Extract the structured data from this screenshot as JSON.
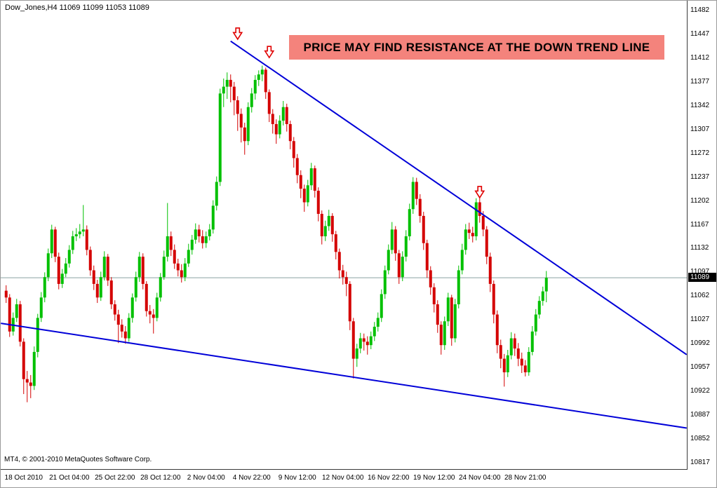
{
  "info_bar": {
    "text": "Dow_Jones,H4  11069 11099 11053 11089"
  },
  "annotation_banner": {
    "text": "PRICE MAY FIND RESISTANCE AT THE DOWN TREND LINE",
    "bg": "#f4837c",
    "fg": "#000000"
  },
  "copyright": {
    "text": "MT4, © 2001-2010 MetaQuotes Software Corp."
  },
  "chart_data": {
    "type": "candlestick",
    "symbol": "Dow_Jones",
    "timeframe": "H4",
    "title": "Dow Jones H4 chart with descending trend lines",
    "last_quote": {
      "open": 11069,
      "high": 11099,
      "low": 11053,
      "close": 11089
    },
    "current_price": 11089,
    "grid": false,
    "colors": {
      "bull": "#00c000",
      "bear": "#d40000",
      "trend": "#0000d8",
      "price_line": "#8aa0a0",
      "arrow": "#e00000",
      "tag_bg": "#000000",
      "tag_fg": "#ffffff"
    },
    "y_axis": {
      "min": 10817,
      "max": 11482,
      "step": 35,
      "labels": [
        11482,
        11447,
        11412,
        11377,
        11342,
        11307,
        11272,
        11237,
        11202,
        11167,
        11132,
        11097,
        11062,
        11027,
        10992,
        10957,
        10922,
        10887,
        10852,
        10817
      ]
    },
    "x_axis": {
      "labels": [
        {
          "text": "18 Oct 2010",
          "index": 5
        },
        {
          "text": "21 Oct 04:00",
          "index": 18
        },
        {
          "text": "25 Oct 22:00",
          "index": 31
        },
        {
          "text": "28 Oct 12:00",
          "index": 44
        },
        {
          "text": "2 Nov 04:00",
          "index": 57
        },
        {
          "text": "4 Nov 22:00",
          "index": 70
        },
        {
          "text": "9 Nov 12:00",
          "index": 83
        },
        {
          "text": "12 Nov 04:00",
          "index": 96
        },
        {
          "text": "16 Nov 22:00",
          "index": 109
        },
        {
          "text": "19 Nov 12:00",
          "index": 122
        },
        {
          "text": "24 Nov 04:00",
          "index": 135
        },
        {
          "text": "28 Nov 21:00",
          "index": 148
        }
      ]
    },
    "trend_lines": [
      {
        "name": "upper-down-trend-line",
        "from_index": 64,
        "from_price": 11437,
        "to_index": 194,
        "to_price": 10976
      },
      {
        "name": "lower-down-trend-line",
        "from_index": -1.5,
        "from_price": 11022,
        "to_index": 194,
        "to_price": 10868
      }
    ],
    "arrows": [
      {
        "index": 66,
        "price": 11448
      },
      {
        "index": 75,
        "price": 11421
      },
      {
        "index": 135,
        "price": 11215
      }
    ],
    "candles": [
      [
        11070,
        11078,
        11052,
        11060
      ],
      [
        11060,
        11065,
        11002,
        11010
      ],
      [
        11010,
        11038,
        11004,
        11030
      ],
      [
        11030,
        11058,
        11024,
        11050
      ],
      [
        11050,
        11055,
        10988,
        10995
      ],
      [
        10995,
        11000,
        10918,
        10940
      ],
      [
        10940,
        10952,
        10906,
        10935
      ],
      [
        10935,
        10946,
        10912,
        10930
      ],
      [
        10930,
        10988,
        10924,
        10980
      ],
      [
        10980,
        11036,
        10972,
        11030
      ],
      [
        11030,
        11068,
        11024,
        11060
      ],
      [
        11060,
        11097,
        11053,
        11090
      ],
      [
        11090,
        11132,
        11084,
        11125
      ],
      [
        11125,
        11167,
        11118,
        11160
      ],
      [
        11160,
        11164,
        11112,
        11120
      ],
      [
        11120,
        11126,
        11072,
        11080
      ],
      [
        11080,
        11102,
        11074,
        11095
      ],
      [
        11095,
        11118,
        11090,
        11110
      ],
      [
        11110,
        11137,
        11104,
        11130
      ],
      [
        11130,
        11158,
        11124,
        11150
      ],
      [
        11150,
        11162,
        11143,
        11153
      ],
      [
        11153,
        11168,
        11147,
        11157
      ],
      [
        11157,
        11196,
        11150,
        11160
      ],
      [
        11160,
        11166,
        11122,
        11130
      ],
      [
        11130,
        11135,
        11092,
        11100
      ],
      [
        11100,
        11107,
        11071,
        11080
      ],
      [
        11080,
        11086,
        11052,
        11060
      ],
      [
        11060,
        11098,
        11055,
        11090
      ],
      [
        11090,
        11128,
        11085,
        11120
      ],
      [
        11120,
        11124,
        11077,
        11085
      ],
      [
        11085,
        11090,
        11043,
        11050
      ],
      [
        11050,
        11056,
        11026,
        11035
      ],
      [
        11035,
        11042,
        10993,
        11020
      ],
      [
        11020,
        11028,
        11001,
        11010
      ],
      [
        11010,
        11018,
        10992,
        11000
      ],
      [
        11000,
        11037,
        10995,
        11030
      ],
      [
        11030,
        11066,
        11023,
        11060
      ],
      [
        11060,
        11098,
        11054,
        11090
      ],
      [
        11090,
        11127,
        11083,
        11120
      ],
      [
        11120,
        11125,
        11072,
        11080
      ],
      [
        11080,
        11084,
        11032,
        11040
      ],
      [
        11040,
        11049,
        11022,
        11035
      ],
      [
        11035,
        11043,
        11007,
        11030
      ],
      [
        11030,
        11067,
        11025,
        11060
      ],
      [
        11060,
        11096,
        11054,
        11090
      ],
      [
        11090,
        11129,
        11086,
        11120
      ],
      [
        11120,
        11199,
        11113,
        11150
      ],
      [
        11150,
        11157,
        11121,
        11130
      ],
      [
        11130,
        11138,
        11102,
        11110
      ],
      [
        11110,
        11117,
        11091,
        11100
      ],
      [
        11100,
        11109,
        11082,
        11090
      ],
      [
        11090,
        11118,
        11084,
        11110
      ],
      [
        11110,
        11139,
        11105,
        11130
      ],
      [
        11130,
        11152,
        11123,
        11145
      ],
      [
        11145,
        11169,
        11139,
        11160
      ],
      [
        11160,
        11167,
        11141,
        11150
      ],
      [
        11150,
        11159,
        11132,
        11140
      ],
      [
        11140,
        11157,
        11133,
        11150
      ],
      [
        11150,
        11168,
        11144,
        11160
      ],
      [
        11160,
        11203,
        11154,
        11195
      ],
      [
        11195,
        11238,
        11188,
        11230
      ],
      [
        11230,
        11367,
        11224,
        11360
      ],
      [
        11360,
        11382,
        11340,
        11370
      ],
      [
        11370,
        11391,
        11352,
        11380
      ],
      [
        11380,
        11388,
        11347,
        11370
      ],
      [
        11370,
        11377,
        11328,
        11350
      ],
      [
        11350,
        11356,
        11305,
        11330
      ],
      [
        11330,
        11338,
        11288,
        11310
      ],
      [
        11310,
        11317,
        11270,
        11290
      ],
      [
        11290,
        11347,
        11284,
        11340
      ],
      [
        11340,
        11368,
        11332,
        11360
      ],
      [
        11360,
        11387,
        11351,
        11380
      ],
      [
        11380,
        11394,
        11371,
        11388
      ],
      [
        11388,
        11401,
        11378,
        11395
      ],
      [
        11395,
        11398,
        11352,
        11362
      ],
      [
        11362,
        11366,
        11318,
        11330
      ],
      [
        11330,
        11337,
        11301,
        11315
      ],
      [
        11315,
        11322,
        11286,
        11300
      ],
      [
        11300,
        11328,
        11294,
        11320
      ],
      [
        11320,
        11349,
        11313,
        11340
      ],
      [
        11340,
        11345,
        11304,
        11315
      ],
      [
        11315,
        11320,
        11278,
        11290
      ],
      [
        11290,
        11296,
        11251,
        11265
      ],
      [
        11265,
        11271,
        11228,
        11240
      ],
      [
        11240,
        11247,
        11206,
        11220
      ],
      [
        11220,
        11226,
        11186,
        11200
      ],
      [
        11200,
        11233,
        11194,
        11225
      ],
      [
        11225,
        11258,
        11218,
        11250
      ],
      [
        11250,
        11254,
        11207,
        11217
      ],
      [
        11217,
        11222,
        11172,
        11183
      ],
      [
        11183,
        11188,
        11138,
        11150
      ],
      [
        11150,
        11173,
        11143,
        11165
      ],
      [
        11165,
        11189,
        11158,
        11180
      ],
      [
        11180,
        11184,
        11142,
        11153
      ],
      [
        11153,
        11158,
        11116,
        11127
      ],
      [
        11127,
        11132,
        11088,
        11100
      ],
      [
        11100,
        11108,
        11079,
        11090
      ],
      [
        11090,
        11098,
        11062,
        11080
      ],
      [
        11080,
        11084,
        11012,
        11025
      ],
      [
        11025,
        11030,
        10941,
        10970
      ],
      [
        10970,
        10992,
        10958,
        10985
      ],
      [
        10985,
        11008,
        10978,
        11000
      ],
      [
        11000,
        11007,
        10982,
        10995
      ],
      [
        10995,
        11003,
        10976,
        10990
      ],
      [
        10990,
        11010,
        10984,
        11003
      ],
      [
        11003,
        11024,
        10996,
        11017
      ],
      [
        11017,
        11038,
        11010,
        11030
      ],
      [
        11030,
        11072,
        11024,
        11065
      ],
      [
        11065,
        11107,
        11058,
        11100
      ],
      [
        11100,
        11138,
        11094,
        11130
      ],
      [
        11130,
        11171,
        11124,
        11160
      ],
      [
        11160,
        11165,
        11114,
        11125
      ],
      [
        11125,
        11130,
        11080,
        11090
      ],
      [
        11090,
        11128,
        11084,
        11120
      ],
      [
        11120,
        11159,
        11113,
        11150
      ],
      [
        11150,
        11198,
        11144,
        11190
      ],
      [
        11190,
        11237,
        11183,
        11230
      ],
      [
        11230,
        11236,
        11196,
        11205
      ],
      [
        11205,
        11212,
        11170,
        11180
      ],
      [
        11180,
        11186,
        11130,
        11140
      ],
      [
        11140,
        11145,
        11089,
        11100
      ],
      [
        11100,
        11106,
        11064,
        11075
      ],
      [
        11075,
        11081,
        11038,
        11050
      ],
      [
        11050,
        11056,
        11008,
        11020
      ],
      [
        11020,
        11025,
        10976,
        10990
      ],
      [
        10990,
        11032,
        10983,
        11025
      ],
      [
        11025,
        11067,
        11018,
        11060
      ],
      [
        11060,
        11064,
        10989,
        11000
      ],
      [
        11000,
        11058,
        10994,
        11050
      ],
      [
        11050,
        11107,
        11044,
        11100
      ],
      [
        11100,
        11139,
        11094,
        11130
      ],
      [
        11130,
        11168,
        11123,
        11160
      ],
      [
        11160,
        11170,
        11146,
        11155
      ],
      [
        11155,
        11164,
        11141,
        11150
      ],
      [
        11150,
        11206,
        11144,
        11200
      ],
      [
        11200,
        11207,
        11170,
        11180
      ],
      [
        11180,
        11187,
        11150,
        11160
      ],
      [
        11160,
        11165,
        11109,
        11120
      ],
      [
        11120,
        11126,
        11068,
        11080
      ],
      [
        11080,
        11085,
        11022,
        11035
      ],
      [
        11035,
        11041,
        10978,
        10990
      ],
      [
        10990,
        10998,
        10956,
        10970
      ],
      [
        10970,
        10977,
        10929,
        10950
      ],
      [
        10950,
        10983,
        10943,
        10975
      ],
      [
        10975,
        11009,
        10969,
        11000
      ],
      [
        11000,
        11007,
        10974,
        10985
      ],
      [
        10985,
        10993,
        10959,
        10970
      ],
      [
        10970,
        10979,
        10949,
        10960
      ],
      [
        10960,
        10968,
        10944,
        10950
      ],
      [
        10950,
        10987,
        10945,
        10980
      ],
      [
        10980,
        11018,
        10975,
        11010
      ],
      [
        11010,
        11043,
        11004,
        11035
      ],
      [
        11035,
        11062,
        11029,
        11055
      ],
      [
        11055,
        11076,
        11048,
        11069
      ],
      [
        11069,
        11099,
        11053,
        11089
      ]
    ]
  }
}
